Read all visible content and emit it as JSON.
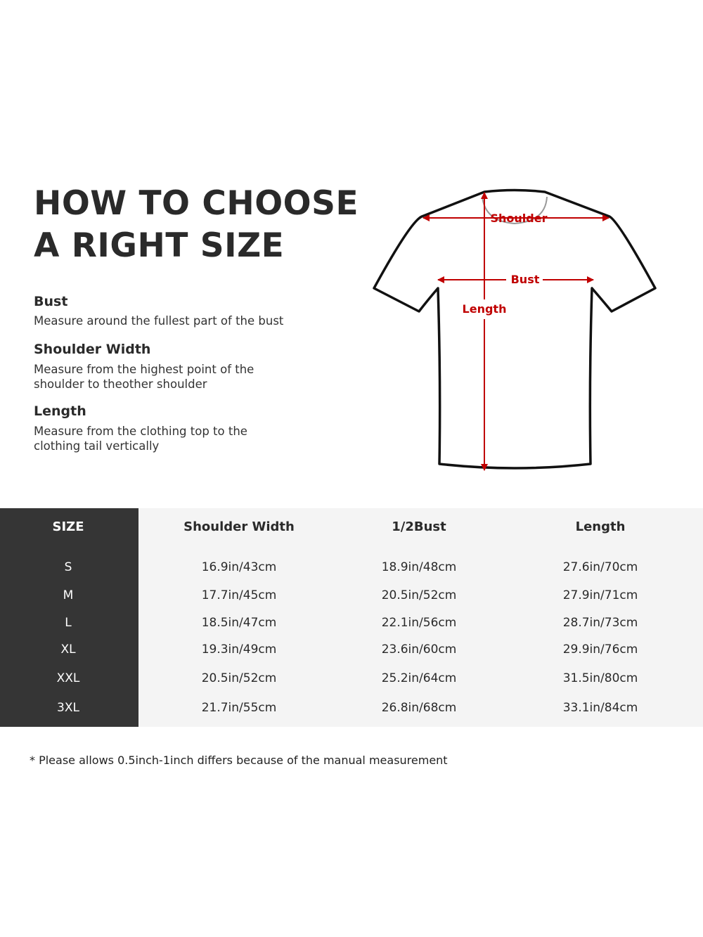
{
  "heading": {
    "line1": "HOW TO CHOOSE",
    "line2": "A RIGHT SIZE"
  },
  "guide": [
    {
      "title": "Bust",
      "desc": [
        "Measure around the fullest part of the bust"
      ]
    },
    {
      "title": "Shoulder Width",
      "desc": [
        "Measure from the highest point of the",
        "shoulder to theother shoulder"
      ]
    },
    {
      "title": "Length",
      "desc": [
        "Measure from the clothing top to the",
        "clothing tail vertically"
      ]
    }
  ],
  "diagram": {
    "labels": {
      "shoulder": "Shoulder",
      "bust": "Bust",
      "length": "Length"
    },
    "arrow_color": "#c00000"
  },
  "table": {
    "headers": [
      "SIZE",
      "Shoulder Width",
      "1/2Bust",
      "Length"
    ],
    "rows": [
      [
        "S",
        "16.9in/43cm",
        "18.9in/48cm",
        "27.6in/70cm"
      ],
      [
        "M",
        "17.7in/45cm",
        "20.5in/52cm",
        "27.9in/71cm"
      ],
      [
        "L",
        "18.5in/47cm",
        "22.1in/56cm",
        "28.7in/73cm"
      ],
      [
        "XL",
        "19.3in/49cm",
        "23.6in/60cm",
        "29.9in/76cm"
      ],
      [
        "XXL",
        "20.5in/52cm",
        "25.2in/64cm",
        "31.5in/80cm"
      ],
      [
        "3XL",
        "21.7in/55cm",
        "26.8in/68cm",
        "33.1in/84cm"
      ]
    ]
  },
  "footnote": "* Please allows 0.5inch-1inch differs because of the  manual measurement"
}
